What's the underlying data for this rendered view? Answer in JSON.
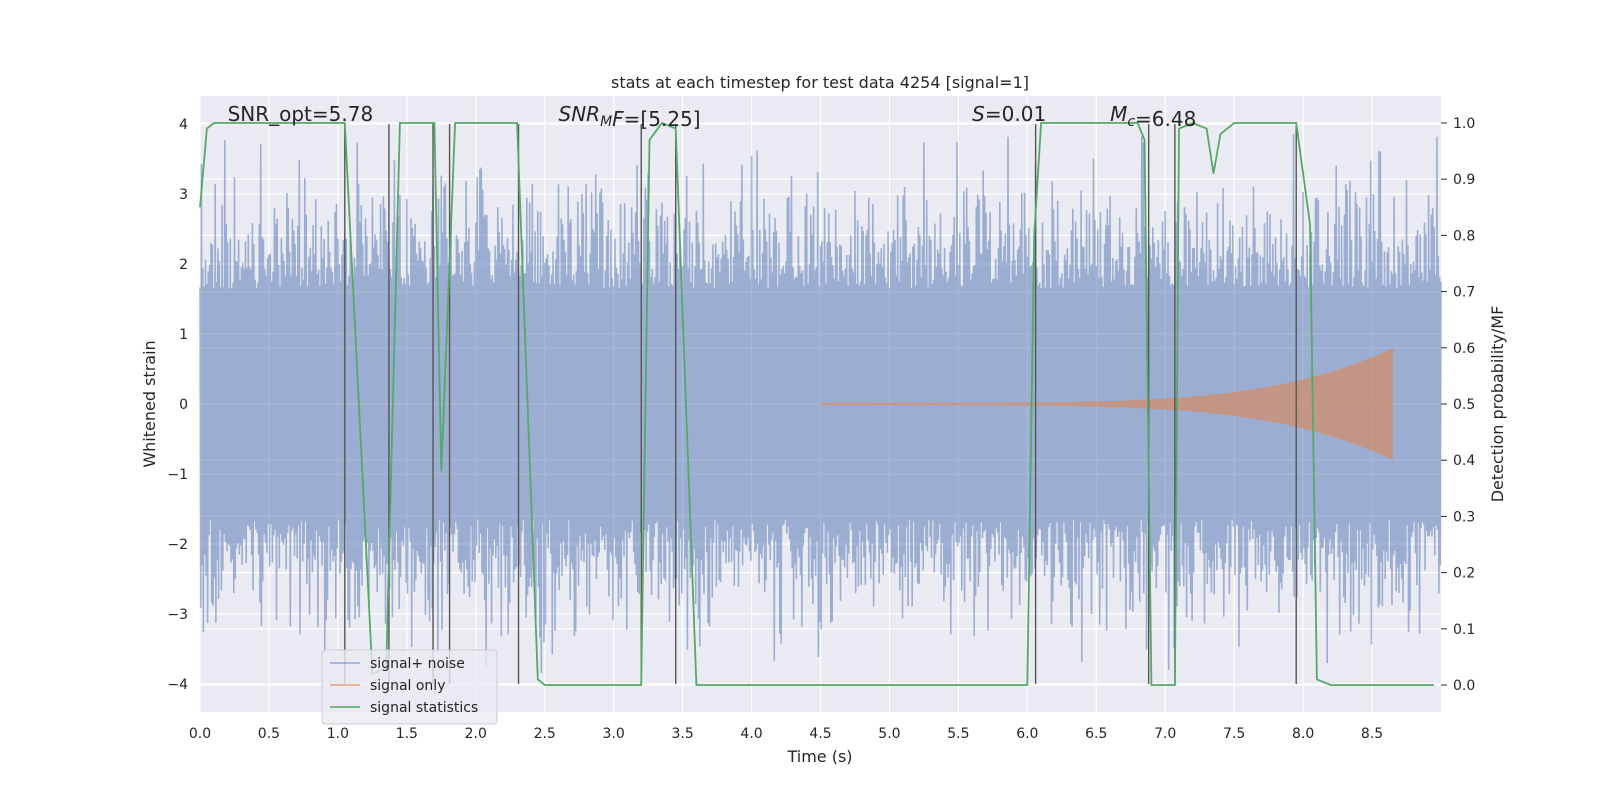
{
  "chart_data": {
    "type": "line",
    "title": "stats at each timestep for test data 4254 [signal=1]",
    "xlabel": "Time (s)",
    "ylabel": "Whitened strain",
    "y2label": "Detection probability/MF",
    "xlim": [
      0,
      9.0
    ],
    "ylim": [
      -4.4,
      4.4
    ],
    "y2lim": [
      -0.048,
      1.048
    ],
    "xticks": [
      "0.0",
      "0.5",
      "1.0",
      "1.5",
      "2.0",
      "2.5",
      "3.0",
      "3.5",
      "4.0",
      "4.5",
      "5.0",
      "5.5",
      "6.0",
      "6.5",
      "7.0",
      "7.5",
      "8.0",
      "8.5"
    ],
    "yticks": [
      "−4",
      "−3",
      "−2",
      "−1",
      "0",
      "1",
      "2",
      "3",
      "4"
    ],
    "y2ticks": [
      "0.0",
      "0.1",
      "0.2",
      "0.3",
      "0.4",
      "0.5",
      "0.6",
      "0.7",
      "0.8",
      "0.9",
      "1.0"
    ],
    "grid": true,
    "legend_position": "lower-left",
    "annotations": [
      {
        "x": 0.2,
        "y": 4.1,
        "text": "SNR_opt=5.78"
      },
      {
        "x": 2.6,
        "y": 4.1,
        "text": "SNR_MF=[5.25]",
        "math_main": "SNR",
        "math_sub": "M",
        "math_rest": "F",
        "suffix": "=[5.25]"
      },
      {
        "x": 5.6,
        "y": 4.1,
        "text": "S=0.01",
        "math_main": "S",
        "suffix": "=0.01"
      },
      {
        "x": 6.6,
        "y": 4.1,
        "text": "Mc=6.48",
        "math_main": "M",
        "math_sub": "c",
        "suffix": "=6.48"
      }
    ],
    "series": [
      {
        "name": "signal+ noise",
        "color": "#4c72b0",
        "opacity": 0.5,
        "kind": "noise",
        "amplitude_typical": 2.2,
        "amplitude_max": 4.0,
        "x_range": [
          0,
          9.0
        ]
      },
      {
        "name": "signal only",
        "color": "#dd8452",
        "opacity": 0.6,
        "kind": "chirp",
        "x_start": 4.5,
        "x_end": 8.65,
        "amplitude_end": 0.8
      },
      {
        "name": "signal statistics",
        "color": "#55a868",
        "axis": "right",
        "x": [
          0.0,
          0.05,
          0.1,
          0.2,
          0.4,
          0.6,
          0.8,
          1.0,
          1.05,
          1.25,
          1.35,
          1.45,
          1.6,
          1.7,
          1.75,
          1.85,
          1.95,
          2.1,
          2.25,
          2.3,
          2.45,
          2.5,
          3.0,
          3.2,
          3.26,
          3.35,
          3.45,
          3.6,
          4.0,
          5.0,
          6.0,
          6.05,
          6.1,
          6.2,
          6.5,
          6.8,
          6.85,
          6.9,
          7.0,
          7.07,
          7.1,
          7.2,
          7.3,
          7.35,
          7.4,
          7.5,
          7.6,
          7.9,
          7.95,
          8.05,
          8.1,
          8.2,
          8.5,
          8.95
        ],
        "y": [
          0.85,
          0.99,
          1.0,
          1.0,
          1.0,
          1.0,
          1.0,
          1.0,
          1.0,
          0.02,
          0.03,
          1.0,
          1.0,
          1.0,
          0.38,
          1.0,
          1.0,
          1.0,
          1.0,
          1.0,
          0.01,
          0.0,
          0.0,
          0.0,
          0.97,
          1.0,
          0.99,
          0.0,
          0.0,
          0.0,
          0.0,
          0.8,
          1.0,
          1.0,
          1.0,
          1.0,
          0.97,
          0.0,
          0.0,
          0.0,
          0.99,
          1.0,
          0.99,
          0.91,
          0.98,
          1.0,
          1.0,
          1.0,
          1.0,
          0.82,
          0.01,
          0.0,
          0.0,
          0.0
        ]
      }
    ],
    "vertical_lines": [
      1.05,
      1.37,
      1.69,
      1.81,
      2.31,
      3.2,
      3.45,
      6.06,
      6.88,
      7.07,
      7.95
    ],
    "legend": [
      {
        "label": "signal+ noise",
        "color": "#4c72b0",
        "opacity": 0.55
      },
      {
        "label": "signal only",
        "color": "#dd8452",
        "opacity": 0.7
      },
      {
        "label": "signal statistics",
        "color": "#55a868",
        "opacity": 1.0
      }
    ],
    "colors": {
      "plot_background": "#eaeaf2",
      "grid": "#ffffff",
      "vertical_line": "#555555"
    }
  }
}
